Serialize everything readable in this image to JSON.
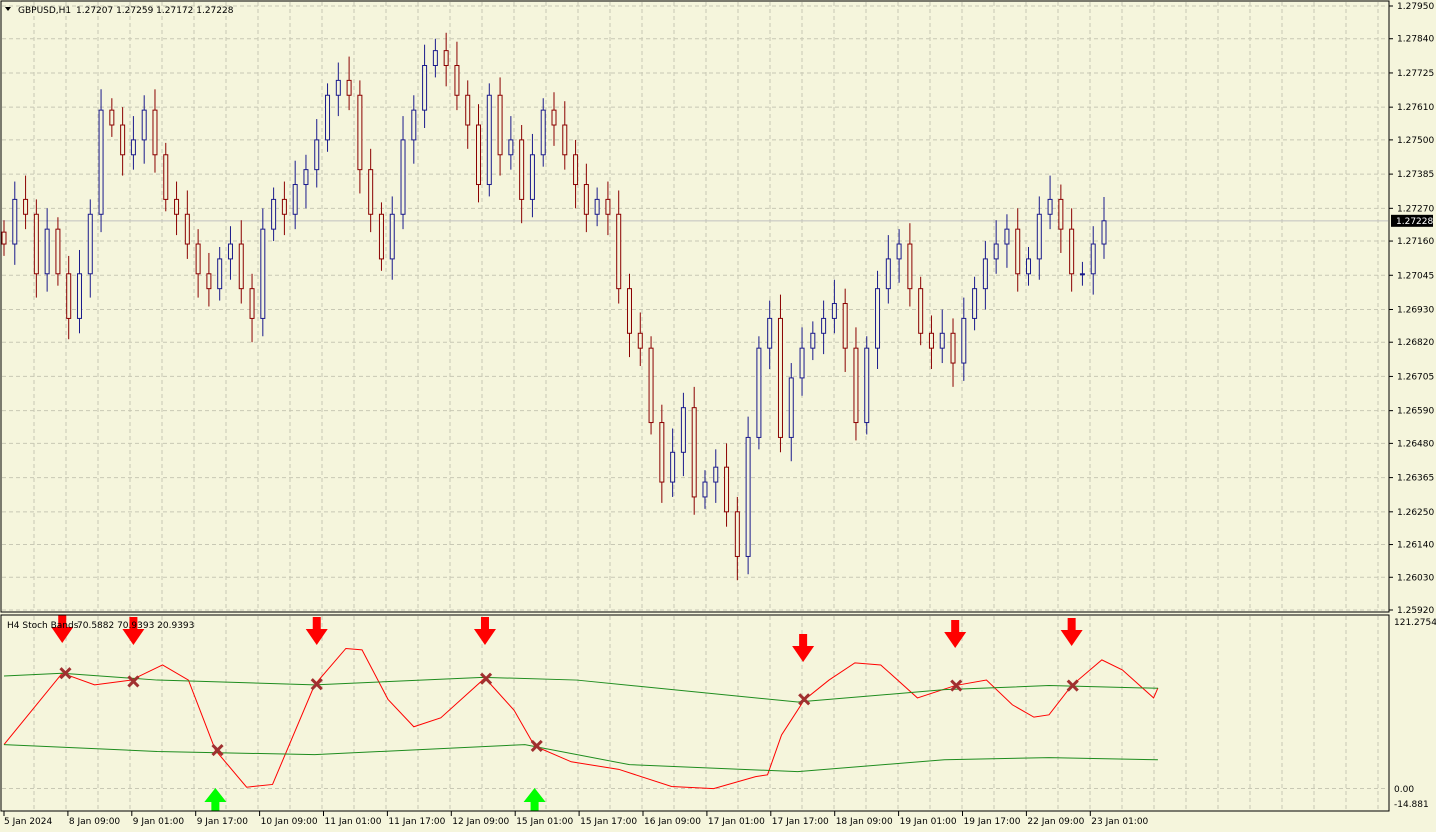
{
  "header": {
    "symbol": "GBPUSD,H1",
    "ohlc": "1.27207 1.27259 1.27172 1.27228",
    "menu_icon": "triangle-down-icon"
  },
  "indicator": {
    "name": "H4 Stoch Bands",
    "values": "70.5882 70.9393 20.9393",
    "scale_top": "121.2754",
    "scale_zero": "0.00",
    "scale_bottom": "-14.881"
  },
  "colors": {
    "background": "#f5f5dc",
    "bull_candle": "#1a1a8c",
    "bear_candle": "#8b0000",
    "stoch_line": "#ff0000",
    "bands": "#1e8c1e",
    "sell_arrow": "#ff0000",
    "buy_arrow": "#00ff00",
    "cross": "#a03030",
    "grid": "#c8c8b4"
  },
  "chart_data": [
    {
      "type": "candlestick",
      "title": "GBPUSD,H1",
      "price_axis_labels": [
        "1.27950",
        "1.27840",
        "1.27725",
        "1.27610",
        "1.27500",
        "1.27385",
        "1.27270",
        "1.27160",
        "1.27045",
        "1.26930",
        "1.26820",
        "1.26705",
        "1.26590",
        "1.26480",
        "1.26365",
        "1.26250",
        "1.26140",
        "1.26030",
        "1.25920"
      ],
      "ylim": [
        1.2592,
        1.2795
      ],
      "current_price": "1.27228",
      "time_axis_labels": [
        "5 Jan 2024",
        "8 Jan 09:00",
        "9 Jan 01:00",
        "9 Jan 17:00",
        "10 Jan 09:00",
        "11 Jan 01:00",
        "11 Jan 17:00",
        "12 Jan 09:00",
        "15 Jan 01:00",
        "15 Jan 17:00",
        "16 Jan 09:00",
        "17 Jan 01:00",
        "17 Jan 17:00",
        "18 Jan 09:00",
        "19 Jan 01:00",
        "19 Jan 17:00",
        "22 Jan 09:00",
        "23 Jan 01:00"
      ],
      "grid": true,
      "closes": [
        1.2715,
        1.273,
        1.2725,
        1.2705,
        1.272,
        1.2705,
        1.269,
        1.2705,
        1.2725,
        1.276,
        1.2755,
        1.2745,
        1.275,
        1.276,
        1.2745,
        1.273,
        1.2725,
        1.2715,
        1.2705,
        1.27,
        1.271,
        1.2715,
        1.27,
        1.269,
        1.272,
        1.273,
        1.2725,
        1.2735,
        1.274,
        1.275,
        1.2765,
        1.277,
        1.2765,
        1.274,
        1.2725,
        1.271,
        1.2725,
        1.275,
        1.276,
        1.2775,
        1.278,
        1.2775,
        1.2765,
        1.2755,
        1.2735,
        1.2765,
        1.2745,
        1.275,
        1.273,
        1.2745,
        1.276,
        1.2755,
        1.2745,
        1.2735,
        1.2725,
        1.273,
        1.2725,
        1.27,
        1.2685,
        1.268,
        1.2655,
        1.2635,
        1.2645,
        1.266,
        1.263,
        1.2635,
        1.264,
        1.2625,
        1.261,
        1.265,
        1.268,
        1.269,
        1.265,
        1.267,
        1.268,
        1.2685,
        1.269,
        1.2695,
        1.268,
        1.2655,
        1.268,
        1.27,
        1.271,
        1.2715,
        1.27,
        1.2685,
        1.268,
        1.2685,
        1.2675,
        1.269,
        1.27,
        1.271,
        1.2715,
        1.272,
        1.2705,
        1.271,
        1.2725,
        1.273,
        1.272,
        1.2705,
        1.2705,
        1.2715,
        1.27228
      ]
    },
    {
      "type": "line",
      "title": "H4 Stoch Bands",
      "ylim": [
        -14.881,
        121.2754
      ],
      "x_unit": "bar index",
      "series": [
        {
          "values": [
            [
              0,
              32
            ],
            [
              5.4,
              84
            ],
            [
              8.4,
              75.5
            ],
            [
              11.8,
              79
            ],
            [
              14.7,
              90
            ],
            [
              17.1,
              79
            ],
            [
              19.6,
              28
            ],
            [
              22.5,
              1
            ],
            [
              24.9,
              3
            ],
            [
              28.8,
              75.5
            ],
            [
              31.7,
              102
            ],
            [
              33.2,
              101
            ],
            [
              35.6,
              65
            ],
            [
              38,
              45
            ],
            [
              40.5,
              51.5
            ],
            [
              44.6,
              80.5
            ],
            [
              47.3,
              57
            ],
            [
              49.2,
              31
            ],
            [
              52.6,
              19.5
            ],
            [
              57,
              14
            ],
            [
              61.9,
              1.5
            ],
            [
              65.8,
              0
            ],
            [
              69.7,
              8.7
            ],
            [
              70.8,
              10
            ],
            [
              72.1,
              39
            ],
            [
              74.2,
              64.5
            ],
            [
              76.5,
              79
            ],
            [
              78.9,
              91.5
            ],
            [
              81.3,
              90
            ],
            [
              84.7,
              66
            ],
            [
              88.2,
              75
            ],
            [
              91.1,
              79
            ],
            [
              93.5,
              61
            ],
            [
              95.5,
              52
            ],
            [
              96.9,
              53.7
            ],
            [
              99,
              75
            ],
            [
              101.8,
              93.7
            ],
            [
              103.7,
              86.4
            ],
            [
              106.6,
              66
            ],
            [
              107,
              73.3
            ]
          ]
        },
        {
          "values": [
            [
              0,
              82
            ],
            [
              5.4,
              84
            ],
            [
              14.2,
              79
            ],
            [
              28.8,
              75.5
            ],
            [
              44.4,
              81
            ],
            [
              53.1,
              79
            ],
            [
              73.6,
              63
            ],
            [
              87.2,
              72
            ],
            [
              96.9,
              75
            ],
            [
              107,
              73
            ]
          ]
        },
        {
          "values": [
            [
              0,
              32
            ],
            [
              14.2,
              27
            ],
            [
              28.8,
              24.7
            ],
            [
              48.3,
              32
            ],
            [
              58,
              17.4
            ],
            [
              73.6,
              12.3
            ],
            [
              87.2,
              21
            ],
            [
              96.9,
              22.5
            ],
            [
              107,
              21
            ]
          ]
        }
      ],
      "sell_signals": [
        5.4,
        12,
        29,
        44.6,
        74.1,
        88.2,
        99
      ],
      "buy_signals": [
        19.6,
        49.2
      ],
      "crosses": [
        [
          5.7,
          84
        ],
        [
          12,
          78
        ],
        [
          19.8,
          28
        ],
        [
          29,
          76
        ],
        [
          44.7,
          80
        ],
        [
          49.4,
          31
        ],
        [
          74.2,
          65
        ],
        [
          88.3,
          75
        ],
        [
          99.1,
          75
        ]
      ]
    }
  ]
}
